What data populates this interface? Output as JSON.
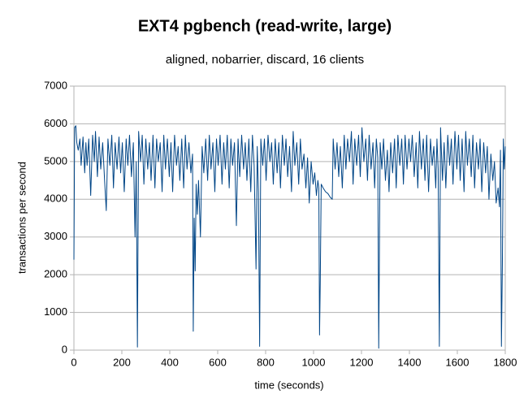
{
  "chart_data": {
    "type": "line",
    "title": "EXT4 pgbench (read-write, large)",
    "subtitle": "aligned, nobarrier, discard, 16 clients",
    "x_label": "time (seconds)",
    "y_label": "transactions per second",
    "xlim": [
      0,
      1800
    ],
    "xticks": [
      0,
      200,
      400,
      600,
      800,
      1000,
      1200,
      1400,
      1600,
      1800
    ],
    "ylim": [
      0,
      7000
    ],
    "yticks": [
      0,
      1000,
      2000,
      3000,
      4000,
      5000,
      6000,
      7000
    ],
    "grid": true,
    "x": [
      0,
      3,
      8,
      12,
      18,
      25,
      30,
      38,
      45,
      50,
      55,
      62,
      70,
      78,
      85,
      90,
      98,
      105,
      112,
      120,
      128,
      135,
      142,
      150,
      158,
      165,
      172,
      180,
      188,
      195,
      202,
      210,
      218,
      225,
      232,
      240,
      248,
      255,
      260,
      265,
      270,
      278,
      285,
      292,
      300,
      308,
      315,
      322,
      330,
      338,
      345,
      352,
      360,
      368,
      375,
      382,
      390,
      398,
      405,
      412,
      420,
      428,
      435,
      442,
      450,
      458,
      465,
      472,
      480,
      488,
      495,
      498,
      502,
      506,
      510,
      515,
      520,
      528,
      535,
      542,
      550,
      558,
      565,
      572,
      580,
      588,
      595,
      602,
      610,
      618,
      625,
      632,
      640,
      648,
      655,
      662,
      670,
      678,
      685,
      692,
      700,
      708,
      715,
      722,
      730,
      738,
      745,
      752,
      760,
      765,
      770,
      775,
      780,
      788,
      795,
      802,
      810,
      818,
      825,
      832,
      840,
      848,
      855,
      862,
      870,
      878,
      885,
      892,
      900,
      908,
      915,
      922,
      930,
      938,
      945,
      952,
      960,
      968,
      975,
      982,
      990,
      998,
      1005,
      1012,
      1018,
      1022,
      1025,
      1028,
      1032,
      1040,
      1050,
      1060,
      1070,
      1078,
      1082,
      1090,
      1098,
      1105,
      1112,
      1120,
      1128,
      1135,
      1142,
      1150,
      1158,
      1165,
      1172,
      1180,
      1188,
      1195,
      1202,
      1210,
      1218,
      1225,
      1232,
      1240,
      1248,
      1255,
      1262,
      1268,
      1272,
      1278,
      1285,
      1292,
      1300,
      1308,
      1315,
      1322,
      1330,
      1338,
      1345,
      1352,
      1360,
      1368,
      1375,
      1382,
      1390,
      1398,
      1405,
      1412,
      1420,
      1428,
      1435,
      1442,
      1450,
      1458,
      1465,
      1472,
      1480,
      1488,
      1495,
      1502,
      1510,
      1515,
      1520,
      1525,
      1530,
      1538,
      1545,
      1552,
      1560,
      1568,
      1575,
      1582,
      1590,
      1598,
      1605,
      1612,
      1620,
      1628,
      1635,
      1642,
      1650,
      1658,
      1665,
      1672,
      1680,
      1688,
      1695,
      1702,
      1710,
      1718,
      1725,
      1732,
      1740,
      1748,
      1755,
      1762,
      1770,
      1776,
      1780,
      1784,
      1788,
      1792,
      1796,
      1800
    ],
    "series": [
      {
        "color": "#004586",
        "values": [
          2400,
          5900,
          5950,
          5500,
          5300,
          5600,
          4900,
          5650,
          4700,
          5500,
          4900,
          5600,
          4100,
          5700,
          5000,
          5800,
          4600,
          5650,
          4800,
          5500,
          4500,
          3700,
          5600,
          4900,
          5700,
          4300,
          5500,
          4800,
          5650,
          4700,
          5500,
          4200,
          5600,
          4900,
          5700,
          4600,
          5500,
          3000,
          5000,
          80,
          5800,
          5000,
          5700,
          4400,
          5600,
          4800,
          5500,
          4500,
          5700,
          4300,
          5600,
          5000,
          5500,
          4200,
          5700,
          4800,
          5600,
          4600,
          5500,
          4200,
          5700,
          4900,
          5400,
          4500,
          5600,
          4300,
          5700,
          4800,
          5500,
          4700,
          5200,
          500,
          3500,
          2100,
          4400,
          3600,
          4500,
          3000,
          5400,
          4700,
          5600,
          4500,
          5700,
          4800,
          5500,
          4200,
          5600,
          4900,
          5700,
          4400,
          5500,
          4800,
          5700,
          4300,
          5600,
          4900,
          5500,
          3300,
          5600,
          4600,
          5700,
          4800,
          5500,
          4500,
          5600,
          4200,
          5700,
          4900,
          2150,
          5400,
          4200,
          100,
          5600,
          4900,
          5600,
          4500,
          5700,
          5000,
          5500,
          4400,
          5600,
          4700,
          5500,
          4300,
          5700,
          4900,
          5600,
          4600,
          5400,
          4200,
          5800,
          4900,
          5500,
          4400,
          5600,
          4800,
          5200,
          4300,
          5100,
          3900,
          5000,
          4400,
          4700,
          4100,
          4500,
          4300,
          400,
          1800,
          4400,
          4300,
          4200,
          4150,
          4050,
          4000,
          5600,
          4800,
          5500,
          4600,
          5400,
          4300,
          5700,
          4800,
          5600,
          5000,
          5800,
          4400,
          5600,
          4900,
          5700,
          4600,
          5900,
          5000,
          5600,
          4500,
          5700,
          4800,
          5500,
          4300,
          5600,
          5100,
          50,
          5500,
          4800,
          5600,
          4500,
          5300,
          4200,
          5500,
          4700,
          5600,
          4300,
          5700,
          4900,
          5600,
          4400,
          5700,
          4800,
          5600,
          5000,
          5700,
          4600,
          5500,
          4300,
          5800,
          4800,
          5600,
          4500,
          5700,
          4200,
          5600,
          4900,
          5400,
          4300,
          5600,
          4800,
          100,
          5900,
          4500,
          5500,
          4300,
          5700,
          4900,
          5600,
          4400,
          5800,
          4800,
          5700,
          4500,
          5600,
          4200,
          5800,
          4900,
          5600,
          4600,
          5700,
          4300,
          5500,
          4800,
          5600,
          4200,
          5500,
          4700,
          5400,
          4000,
          5200,
          4500,
          5000,
          3900,
          4300,
          3800,
          5300,
          100,
          2300,
          5600,
          4800,
          5400
        ]
      }
    ]
  }
}
